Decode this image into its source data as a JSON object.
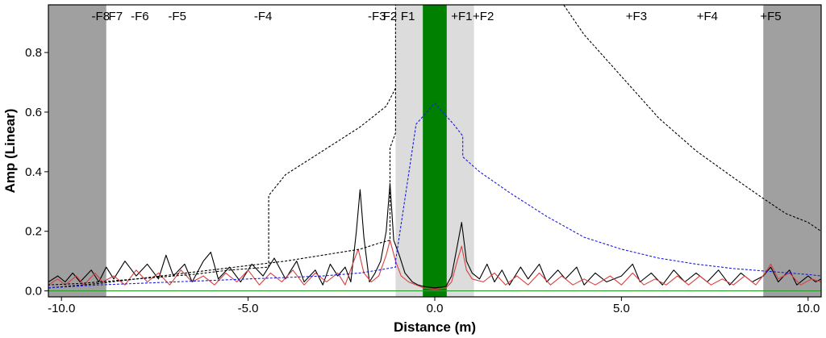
{
  "chart_data": {
    "type": "line",
    "title": "",
    "xlabel": "Distance (m)",
    "ylabel": "Amp (Linear)",
    "xlim": [
      -10.35,
      10.35
    ],
    "ylim": [
      -0.02,
      0.96
    ],
    "x_ticks": [
      -10.0,
      -5.0,
      0.0,
      5.0,
      10.0
    ],
    "x_tick_labels": [
      "-10.0",
      "-5.0",
      "0.0",
      "5.0",
      "10.0"
    ],
    "y_ticks": [
      0.0,
      0.2,
      0.4,
      0.6,
      0.8
    ],
    "y_tick_labels": [
      "0.0",
      "0.2",
      "0.4",
      "0.6",
      "0.8"
    ],
    "grid": false,
    "legend": "none",
    "colors": {
      "outer_band": "#a0a0a0",
      "inner_band": "#dcdcdc",
      "center_band": "#008000",
      "black_trace": "#000000",
      "red_trace": "#d84040",
      "black_dashed": "#000000",
      "blue_dashed": "#1a1ae0",
      "baseline": "#2e9b2e"
    },
    "bands": [
      {
        "kind": "outer",
        "x0": -10.35,
        "x1": -8.8
      },
      {
        "kind": "outer",
        "x0": 8.8,
        "x1": 10.35
      },
      {
        "kind": "inner",
        "x0": -1.05,
        "x1": 1.05
      },
      {
        "kind": "center",
        "x0": -0.32,
        "x1": 0.32
      }
    ],
    "markers": [
      {
        "label": "-F8",
        "x": -8.95
      },
      {
        "label": "F7",
        "x": -8.55
      },
      {
        "label": "-F6",
        "x": -7.9
      },
      {
        "label": "-F5",
        "x": -6.9
      },
      {
        "label": "-F4",
        "x": -4.6
      },
      {
        "label": "-F3",
        "x": -1.55
      },
      {
        "label": "F2",
        "x": -1.2
      },
      {
        "label": "F1",
        "x": -0.72
      },
      {
        "label": "+F1",
        "x": 0.72
      },
      {
        "label": "+F2",
        "x": 1.3
      },
      {
        "label": "+F3",
        "x": 5.4
      },
      {
        "label": "+F4",
        "x": 7.3
      },
      {
        "label": "+F5",
        "x": 9.0
      }
    ],
    "series": [
      {
        "style": "solid",
        "color": "black_trace",
        "points": [
          [
            -10.35,
            0.03
          ],
          [
            -10.1,
            0.05
          ],
          [
            -9.9,
            0.03
          ],
          [
            -9.7,
            0.06
          ],
          [
            -9.5,
            0.03
          ],
          [
            -9.2,
            0.07
          ],
          [
            -9.0,
            0.03
          ],
          [
            -8.8,
            0.08
          ],
          [
            -8.6,
            0.04
          ],
          [
            -8.3,
            0.1
          ],
          [
            -8.0,
            0.05
          ],
          [
            -7.7,
            0.09
          ],
          [
            -7.4,
            0.04
          ],
          [
            -7.2,
            0.12
          ],
          [
            -7.0,
            0.05
          ],
          [
            -6.7,
            0.09
          ],
          [
            -6.5,
            0.03
          ],
          [
            -6.2,
            0.1
          ],
          [
            -6.0,
            0.13
          ],
          [
            -5.8,
            0.04
          ],
          [
            -5.5,
            0.08
          ],
          [
            -5.2,
            0.03
          ],
          [
            -4.9,
            0.09
          ],
          [
            -4.6,
            0.05
          ],
          [
            -4.3,
            0.11
          ],
          [
            -4.0,
            0.04
          ],
          [
            -3.7,
            0.1
          ],
          [
            -3.5,
            0.03
          ],
          [
            -3.2,
            0.07
          ],
          [
            -3.0,
            0.02
          ],
          [
            -2.8,
            0.09
          ],
          [
            -2.6,
            0.05
          ],
          [
            -2.4,
            0.08
          ],
          [
            -2.25,
            0.03
          ],
          [
            -2.1,
            0.2
          ],
          [
            -2.0,
            0.34
          ],
          [
            -1.9,
            0.18
          ],
          [
            -1.75,
            0.03
          ],
          [
            -1.6,
            0.06
          ],
          [
            -1.45,
            0.1
          ],
          [
            -1.3,
            0.2
          ],
          [
            -1.2,
            0.36
          ],
          [
            -1.1,
            0.17
          ],
          [
            -0.95,
            0.12
          ],
          [
            -0.8,
            0.06
          ],
          [
            -0.6,
            0.03
          ],
          [
            -0.45,
            0.02
          ],
          [
            -0.3,
            0.015
          ],
          [
            0.0,
            0.01
          ],
          [
            0.3,
            0.015
          ],
          [
            0.45,
            0.05
          ],
          [
            0.6,
            0.15
          ],
          [
            0.72,
            0.23
          ],
          [
            0.85,
            0.1
          ],
          [
            1.0,
            0.06
          ],
          [
            1.2,
            0.04
          ],
          [
            1.4,
            0.09
          ],
          [
            1.6,
            0.03
          ],
          [
            1.8,
            0.07
          ],
          [
            2.0,
            0.02
          ],
          [
            2.3,
            0.08
          ],
          [
            2.5,
            0.04
          ],
          [
            2.8,
            0.09
          ],
          [
            3.0,
            0.03
          ],
          [
            3.3,
            0.07
          ],
          [
            3.5,
            0.04
          ],
          [
            3.8,
            0.08
          ],
          [
            4.0,
            0.02
          ],
          [
            4.3,
            0.06
          ],
          [
            4.6,
            0.03
          ],
          [
            5.0,
            0.05
          ],
          [
            5.3,
            0.09
          ],
          [
            5.5,
            0.03
          ],
          [
            5.8,
            0.06
          ],
          [
            6.1,
            0.02
          ],
          [
            6.4,
            0.07
          ],
          [
            6.7,
            0.03
          ],
          [
            7.0,
            0.06
          ],
          [
            7.3,
            0.03
          ],
          [
            7.6,
            0.07
          ],
          [
            7.9,
            0.02
          ],
          [
            8.2,
            0.06
          ],
          [
            8.5,
            0.03
          ],
          [
            8.8,
            0.05
          ],
          [
            9.0,
            0.08
          ],
          [
            9.2,
            0.03
          ],
          [
            9.5,
            0.07
          ],
          [
            9.7,
            0.02
          ],
          [
            10.0,
            0.05
          ],
          [
            10.2,
            0.03
          ],
          [
            10.35,
            0.04
          ]
        ]
      },
      {
        "style": "solid",
        "color": "red_trace",
        "points": [
          [
            -10.35,
            0.02
          ],
          [
            -10.1,
            0.04
          ],
          [
            -9.9,
            0.02
          ],
          [
            -9.6,
            0.05
          ],
          [
            -9.4,
            0.02
          ],
          [
            -9.1,
            0.06
          ],
          [
            -8.9,
            0.03
          ],
          [
            -8.6,
            0.05
          ],
          [
            -8.3,
            0.02
          ],
          [
            -8.0,
            0.07
          ],
          [
            -7.7,
            0.03
          ],
          [
            -7.4,
            0.06
          ],
          [
            -7.1,
            0.02
          ],
          [
            -6.8,
            0.07
          ],
          [
            -6.5,
            0.03
          ],
          [
            -6.2,
            0.05
          ],
          [
            -5.9,
            0.02
          ],
          [
            -5.6,
            0.06
          ],
          [
            -5.3,
            0.03
          ],
          [
            -5.0,
            0.07
          ],
          [
            -4.7,
            0.02
          ],
          [
            -4.4,
            0.06
          ],
          [
            -4.1,
            0.03
          ],
          [
            -3.8,
            0.07
          ],
          [
            -3.5,
            0.02
          ],
          [
            -3.2,
            0.06
          ],
          [
            -2.9,
            0.03
          ],
          [
            -2.6,
            0.06
          ],
          [
            -2.4,
            0.02
          ],
          [
            -2.2,
            0.09
          ],
          [
            -2.05,
            0.14
          ],
          [
            -1.9,
            0.06
          ],
          [
            -1.7,
            0.03
          ],
          [
            -1.5,
            0.05
          ],
          [
            -1.3,
            0.12
          ],
          [
            -1.2,
            0.17
          ],
          [
            -1.05,
            0.1
          ],
          [
            -0.9,
            0.05
          ],
          [
            -0.7,
            0.03
          ],
          [
            -0.5,
            0.02
          ],
          [
            -0.3,
            0.01
          ],
          [
            0.0,
            0.005
          ],
          [
            0.3,
            0.01
          ],
          [
            0.45,
            0.03
          ],
          [
            0.6,
            0.1
          ],
          [
            0.72,
            0.15
          ],
          [
            0.85,
            0.07
          ],
          [
            1.0,
            0.04
          ],
          [
            1.3,
            0.03
          ],
          [
            1.6,
            0.06
          ],
          [
            1.9,
            0.02
          ],
          [
            2.2,
            0.05
          ],
          [
            2.5,
            0.02
          ],
          [
            2.8,
            0.06
          ],
          [
            3.1,
            0.02
          ],
          [
            3.4,
            0.05
          ],
          [
            3.7,
            0.02
          ],
          [
            4.0,
            0.04
          ],
          [
            4.3,
            0.02
          ],
          [
            4.7,
            0.05
          ],
          [
            5.0,
            0.02
          ],
          [
            5.3,
            0.06
          ],
          [
            5.6,
            0.02
          ],
          [
            5.9,
            0.04
          ],
          [
            6.2,
            0.02
          ],
          [
            6.5,
            0.05
          ],
          [
            6.8,
            0.02
          ],
          [
            7.1,
            0.05
          ],
          [
            7.4,
            0.02
          ],
          [
            7.7,
            0.04
          ],
          [
            8.0,
            0.02
          ],
          [
            8.3,
            0.05
          ],
          [
            8.6,
            0.02
          ],
          [
            8.85,
            0.06
          ],
          [
            9.0,
            0.09
          ],
          [
            9.2,
            0.04
          ],
          [
            9.5,
            0.06
          ],
          [
            9.8,
            0.02
          ],
          [
            10.1,
            0.04
          ],
          [
            10.35,
            0.03
          ]
        ]
      },
      {
        "style": "dashed",
        "color": "black_dashed",
        "points": [
          [
            -10.35,
            0.01
          ],
          [
            -9.0,
            0.025
          ],
          [
            -8.0,
            0.04
          ],
          [
            -7.0,
            0.055
          ],
          [
            -6.0,
            0.07
          ],
          [
            -5.0,
            0.085
          ],
          [
            -4.0,
            0.1
          ],
          [
            -3.0,
            0.12
          ],
          [
            -2.0,
            0.14
          ],
          [
            -1.5,
            0.16
          ],
          [
            -1.2,
            0.17
          ],
          [
            -1.2,
            0.48
          ],
          [
            -1.05,
            0.53
          ],
          [
            -1.05,
            0.96
          ],
          [
            3.45,
            0.96
          ],
          [
            4.0,
            0.86
          ],
          [
            5.0,
            0.72
          ],
          [
            6.0,
            0.58
          ],
          [
            7.0,
            0.47
          ],
          [
            8.0,
            0.38
          ],
          [
            8.8,
            0.31
          ],
          [
            9.4,
            0.26
          ],
          [
            10.0,
            0.23
          ],
          [
            10.35,
            0.2
          ]
        ]
      },
      {
        "style": "dashed",
        "color": "black_dashed",
        "points": [
          [
            -1.05,
            0.68
          ],
          [
            -1.3,
            0.62
          ],
          [
            -2.0,
            0.55
          ],
          [
            -3.0,
            0.47
          ],
          [
            -4.0,
            0.39
          ],
          [
            -4.45,
            0.32
          ],
          [
            -4.45,
            0.08
          ],
          [
            -5.5,
            0.07
          ],
          [
            -6.5,
            0.055
          ],
          [
            -7.5,
            0.045
          ],
          [
            -8.5,
            0.035
          ],
          [
            -9.5,
            0.025
          ],
          [
            -10.35,
            0.02
          ]
        ]
      },
      {
        "style": "dashed",
        "color": "blue_dashed",
        "points": [
          [
            -10.35,
            0.01
          ],
          [
            -9.0,
            0.02
          ],
          [
            -8.0,
            0.025
          ],
          [
            -7.0,
            0.03
          ],
          [
            -6.0,
            0.035
          ],
          [
            -5.0,
            0.04
          ],
          [
            -4.0,
            0.045
          ],
          [
            -3.0,
            0.05
          ],
          [
            -2.0,
            0.06
          ],
          [
            -1.5,
            0.07
          ],
          [
            -1.05,
            0.08
          ],
          [
            -1.05,
            0.1
          ],
          [
            -0.5,
            0.56
          ],
          [
            0.0,
            0.63
          ],
          [
            0.5,
            0.56
          ],
          [
            0.75,
            0.52
          ],
          [
            0.75,
            0.45
          ],
          [
            1.2,
            0.4
          ],
          [
            2.0,
            0.33
          ],
          [
            3.0,
            0.25
          ],
          [
            4.0,
            0.18
          ],
          [
            5.0,
            0.14
          ],
          [
            6.0,
            0.11
          ],
          [
            7.0,
            0.09
          ],
          [
            8.0,
            0.075
          ],
          [
            9.0,
            0.065
          ],
          [
            10.0,
            0.055
          ],
          [
            10.35,
            0.05
          ]
        ]
      },
      {
        "style": "solid",
        "color": "baseline",
        "points": [
          [
            -10.35,
            0.0
          ],
          [
            10.35,
            0.0
          ]
        ]
      }
    ]
  }
}
